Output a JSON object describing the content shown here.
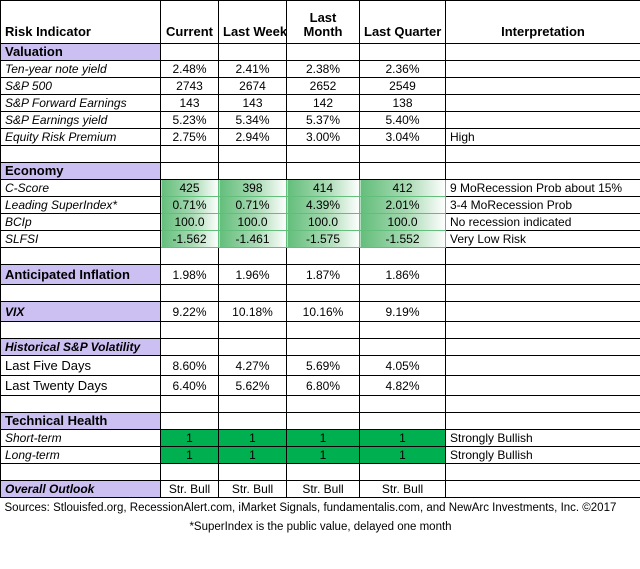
{
  "header": {
    "indicator": "Risk Indicator",
    "current": "Current",
    "last_week": "Last Week",
    "last_month_line1": "Last",
    "last_month_line2": "Month",
    "last_quarter": "Last Quarter",
    "interpretation": "Interpretation"
  },
  "valuation": {
    "title": "Valuation",
    "rows": [
      {
        "label": "Ten-year note yield",
        "current": "2.48%",
        "week": "2.41%",
        "month": "2.38%",
        "quarter": "2.36%",
        "interp": ""
      },
      {
        "label": "S&P 500",
        "current": "2743",
        "week": "2674",
        "month": "2652",
        "quarter": "2549",
        "interp": ""
      },
      {
        "label": "S&P Forward Earnings",
        "current": "143",
        "week": "143",
        "month": "142",
        "quarter": "138",
        "interp": ""
      },
      {
        "label": "S&P Earnings yield",
        "current": "5.23%",
        "week": "5.34%",
        "month": "5.37%",
        "quarter": "5.40%",
        "interp": ""
      },
      {
        "label": "Equity Risk Premium",
        "current": "2.75%",
        "week": "2.94%",
        "month": "3.00%",
        "quarter": "3.04%",
        "interp": "High"
      }
    ]
  },
  "economy": {
    "title": "Economy",
    "rows": [
      {
        "label": "C-Score",
        "current": "425",
        "week": "398",
        "month": "414",
        "quarter": "412",
        "interp": "9 MoRecession Prob about 15%"
      },
      {
        "label": "Leading SuperIndex*",
        "current": "0.71%",
        "week": "0.71%",
        "month": "4.39%",
        "quarter": "2.01%",
        "interp": "3-4 MoRecession Prob"
      },
      {
        "label": "BCIp",
        "current": "100.0",
        "week": "100.0",
        "month": "100.0",
        "quarter": "100.0",
        "interp": "No recession indicated"
      },
      {
        "label": "SLFSI",
        "current": "-1.562",
        "week": "-1.461",
        "month": "-1.575",
        "quarter": "-1.552",
        "interp": "Very Low Risk"
      }
    ]
  },
  "inflation": {
    "label": "Anticipated Inflation",
    "current": "1.98%",
    "week": "1.96%",
    "month": "1.87%",
    "quarter": "1.86%"
  },
  "vix": {
    "label": "VIX",
    "current": "9.22%",
    "week": "10.18%",
    "month": "10.16%",
    "quarter": "9.19%"
  },
  "volatility": {
    "title": "Historical  S&P Volatility",
    "rows": [
      {
        "label": "Last Five Days",
        "current": "8.60%",
        "week": "4.27%",
        "month": "5.69%",
        "quarter": "4.05%"
      },
      {
        "label": "Last Twenty Days",
        "current": "6.40%",
        "week": "5.62%",
        "month": "6.80%",
        "quarter": "4.82%"
      }
    ]
  },
  "technical": {
    "title": "Technical Health",
    "rows": [
      {
        "label": "Short-term",
        "current": "1",
        "week": "1",
        "month": "1",
        "quarter": "1",
        "interp": "Strongly Bullish"
      },
      {
        "label": "Long-term",
        "current": "1",
        "week": "1",
        "month": "1",
        "quarter": "1",
        "interp": "Strongly Bullish"
      }
    ]
  },
  "outlook": {
    "label": "Overall Outlook",
    "current": "Str. Bull",
    "week": "Str. Bull",
    "month": "Str. Bull",
    "quarter": "Str. Bull"
  },
  "footer": {
    "sources": "Sources: Stlouisfed.org, RecessionAlert.com, iMarket Signals, fundamentalis.com, and NewArc Investments, Inc. ©2017",
    "note": "*SuperIndex is the public value, delayed one month"
  },
  "colors": {
    "section": "#ccc0f2",
    "green": "#00b050",
    "gradient_start": "#63be7b"
  }
}
